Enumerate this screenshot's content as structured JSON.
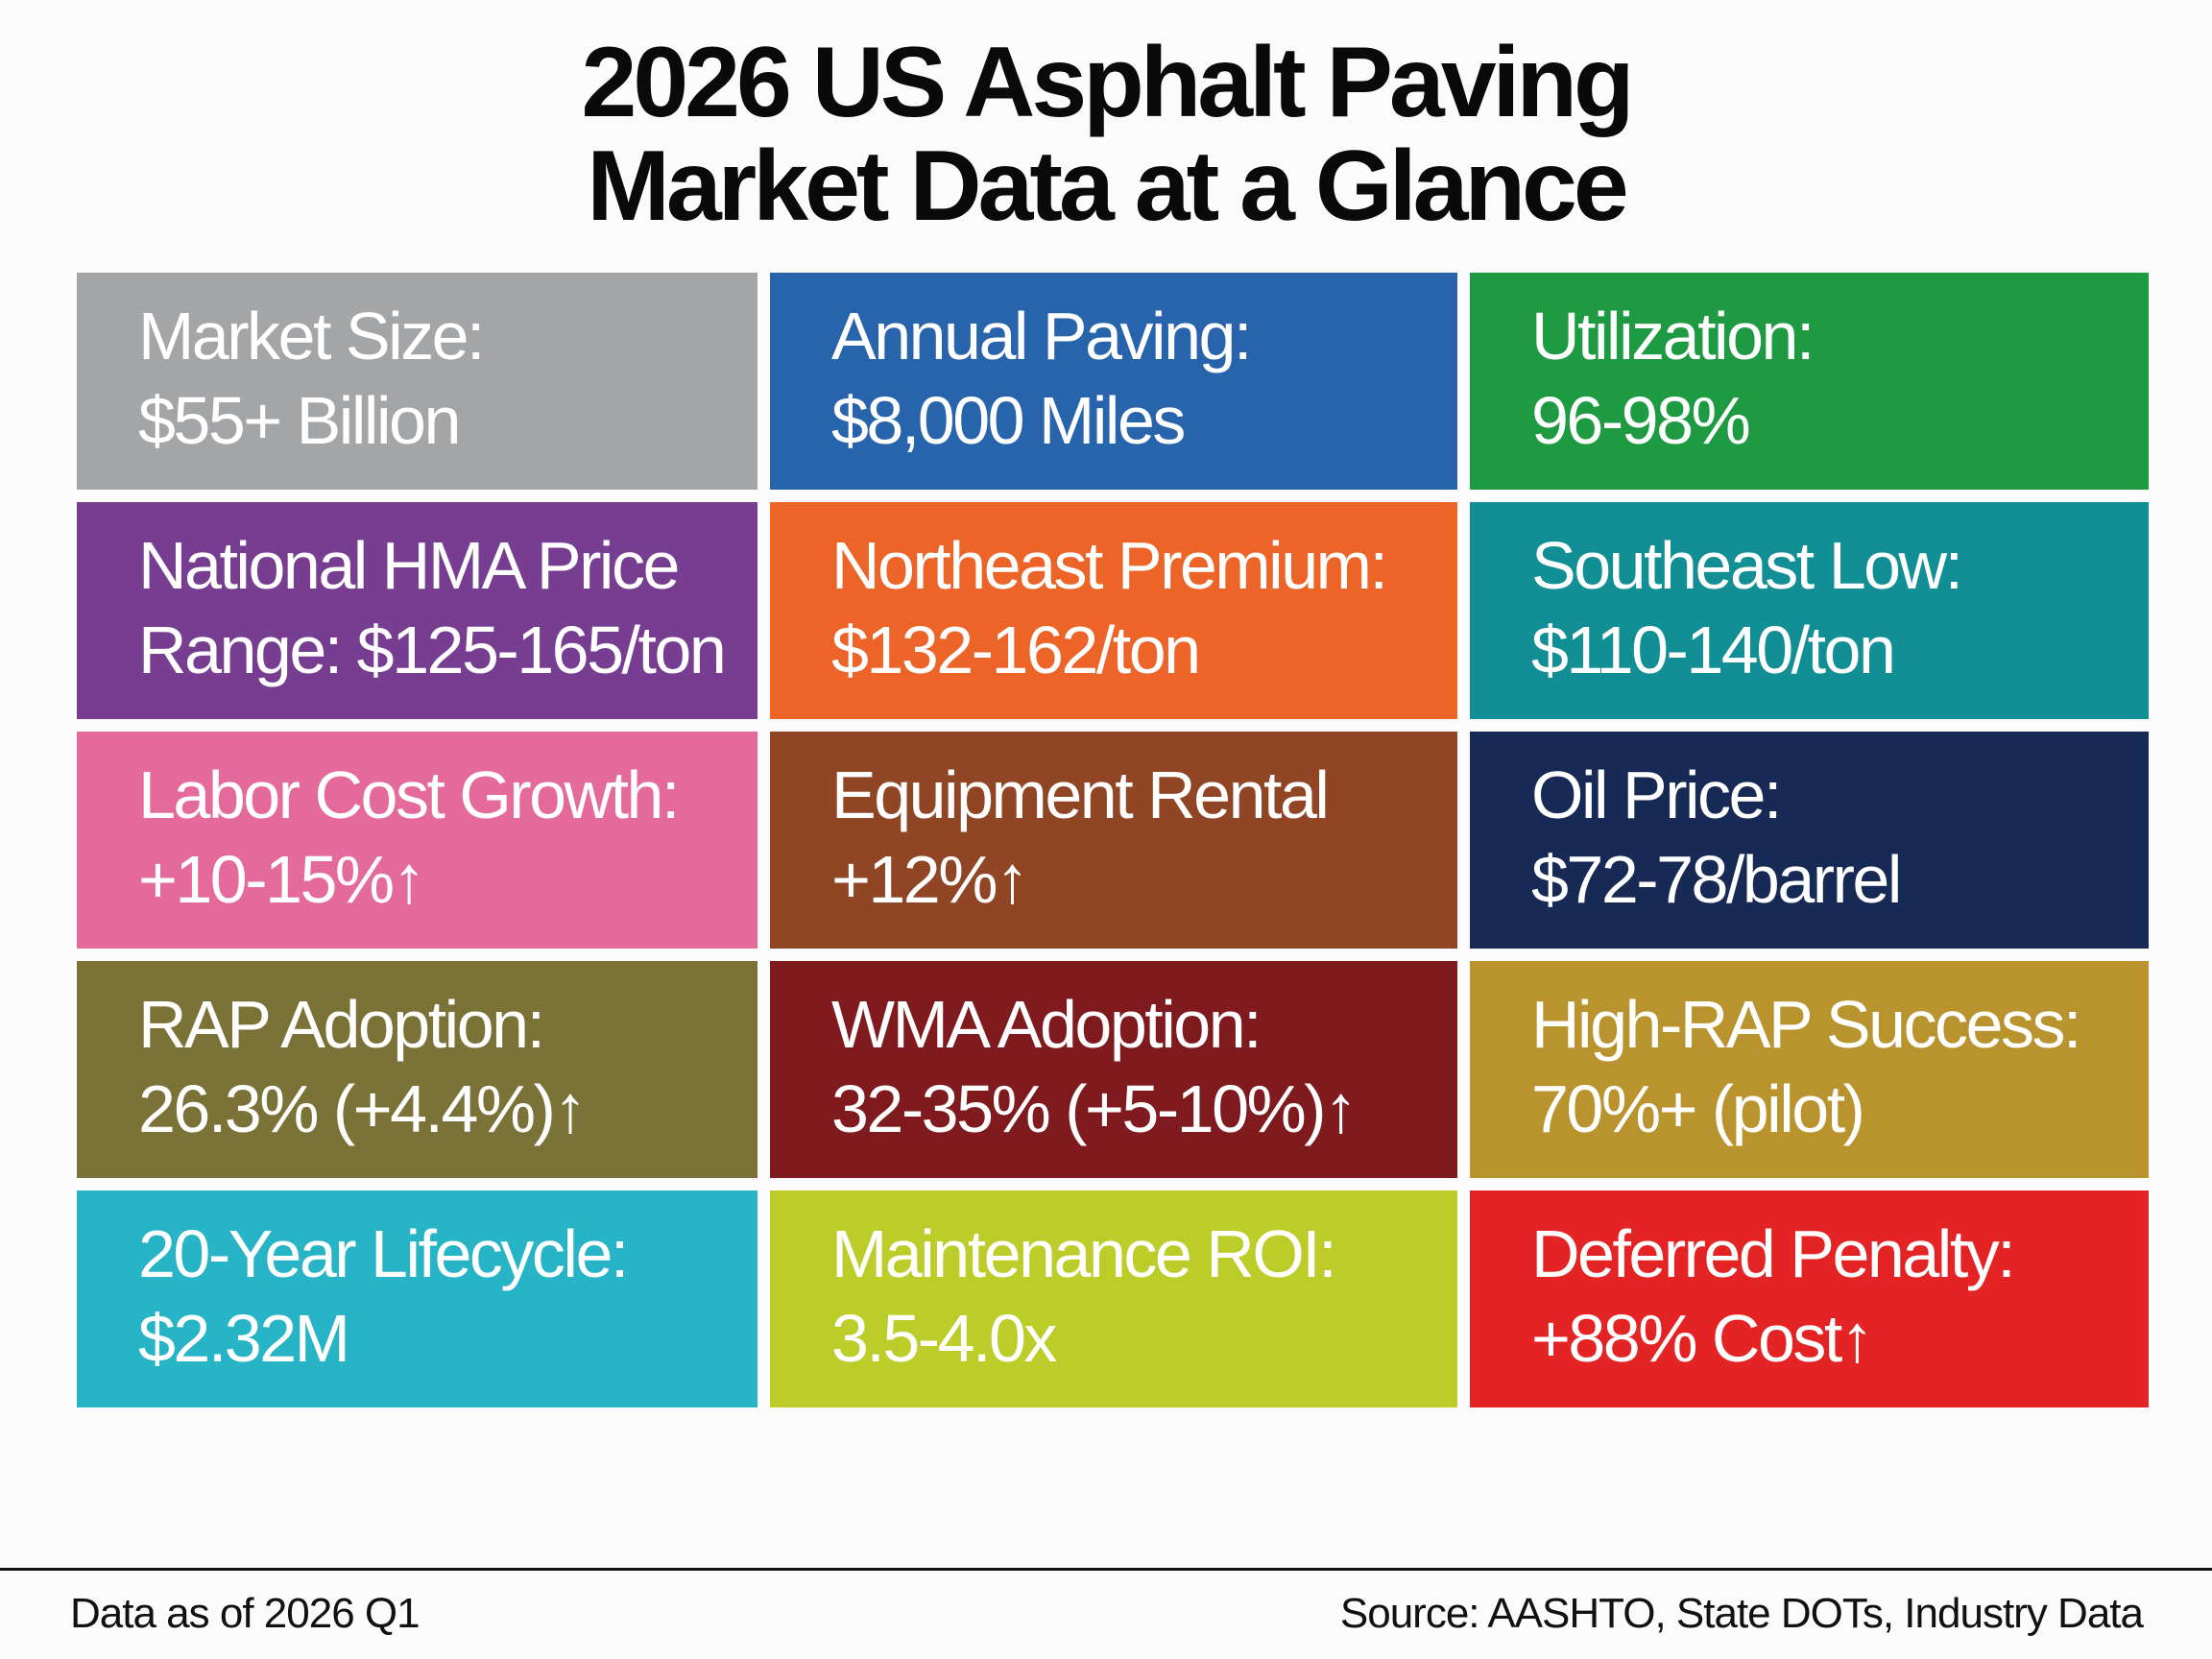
{
  "title": {
    "line1": "2026 US Asphalt Paving",
    "line2": "Market Data at a Glance"
  },
  "tiles": [
    {
      "line1": "Market Size:",
      "line2": "$55+ Billion",
      "color": "#a4a5a7"
    },
    {
      "line1": "Annual Paving:",
      "line2": "$8,000 Miles",
      "color": "#2764ac"
    },
    {
      "line1": "Utilization:",
      "line2": "96-98%",
      "color": "#1e9a43"
    },
    {
      "line1": "National HMA Price",
      "line2": "Range: $125-165/ton",
      "color": "#773d90"
    },
    {
      "line1": "Northeast Premium:",
      "line2": "$132-162/ton",
      "color": "#ec6428"
    },
    {
      "line1": "Southeast Low:",
      "line2": "$110-140/ton",
      "color": "#128e95"
    },
    {
      "line1": "Labor Cost Growth:",
      "line2": "+10-15%↑",
      "color": "#e56a9c"
    },
    {
      "line1": "Equipment Rental",
      "line2": "+12%↑",
      "color": "#904524"
    },
    {
      "line1": "Oil Price:",
      "line2": "$72-78/barrel",
      "color": "#172a55"
    },
    {
      "line1": "RAP Adoption:",
      "line2": "26.3% (+4.4%)↑",
      "color": "#7a7237"
    },
    {
      "line1": "WMA Adoption:",
      "line2": "32-35% (+5-10%)↑",
      "color": "#7f1a1e"
    },
    {
      "line1": "High-RAP Success:",
      "line2": "70%+ (pilot)",
      "color": "#b8932e"
    },
    {
      "line1": "20-Year Lifecycle:",
      "line2": "$2.32M",
      "color": "#27b4c6"
    },
    {
      "line1": "Maintenance ROI:",
      "line2": "3.5-4.0x",
      "color": "#bccd2a"
    },
    {
      "line1": "Deferred Penalty:",
      "line2": "+88% Cost↑",
      "color": "#e42424"
    }
  ],
  "footer": {
    "left": "Data as of 2026 Q1",
    "right": "Source: AASHTO, State DOTs, Industry Data"
  }
}
